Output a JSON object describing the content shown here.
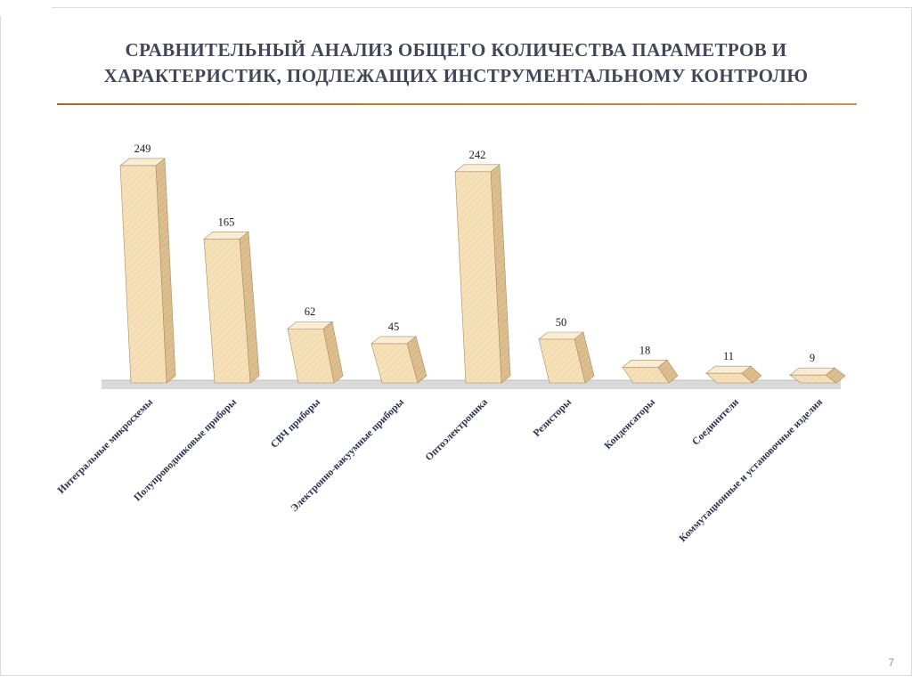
{
  "slide": {
    "title_lines": [
      "СРАВНИТЕЛЬНЫЙ АНАЛИЗ ОБЩЕГО КОЛИЧЕСТВА ПАРАМЕТРОВ И",
      "ХАРАКТЕРИСТИК, ПОДЛЕЖАЩИХ ИНСТРУМЕНТАЛЬНОМУ КОНТРОЛЮ"
    ],
    "page_number": "7",
    "title_color": "#434659",
    "accent_color": "#C07A28"
  },
  "chart_data": {
    "type": "bar",
    "title": "Сравнительный анализ общего количества параметров и характеристик, подлежащих инструментальному контролю",
    "categories": [
      "Интегральные микросхемы",
      "Полупроводниковые приборы",
      "СВЧ приборы",
      "Электронно-вакуумные приборы",
      "Оптоэлектроника",
      "Резисторы",
      "Конденсаторы",
      "Соединители",
      "Коммутационные и установочные изделия"
    ],
    "values": [
      249,
      165,
      62,
      45,
      242,
      50,
      18,
      11,
      9
    ],
    "xlabel": "",
    "ylabel": "",
    "ylim": [
      0,
      260
    ],
    "grid": false,
    "legend": false,
    "style": "3d-bar",
    "bar_front_color": "#F6E0B8",
    "bar_front_hatch_color": "#EDD2A4",
    "bar_top_color": "#FAEDD3",
    "bar_side_color": "#DDBE8F",
    "bar_side_hatch_color": "#CFAE7C",
    "bar_outline_color": "#A98E60",
    "value_label_color": "#1a1a1a",
    "category_label_color": "#2C3150",
    "floor_color": "#D9D9D9",
    "floor_edge_color": "#BFBFBF"
  }
}
